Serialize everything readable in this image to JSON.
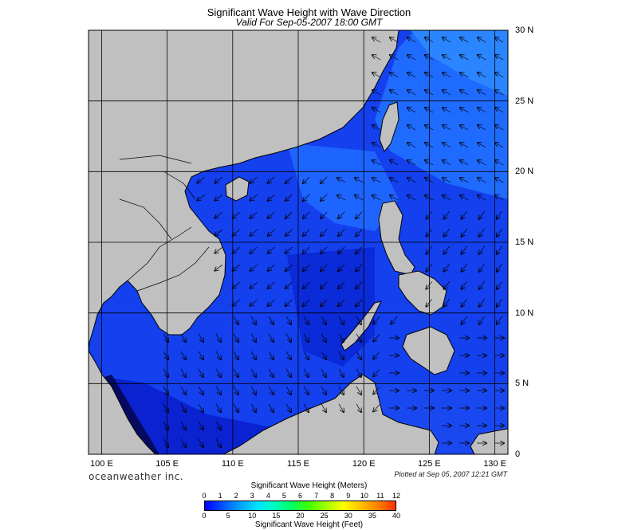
{
  "title": "Significant Wave Height with Wave Direction",
  "subtitle": "Valid For Sep-05-2007 18:00 GMT",
  "map": {
    "lon_range": [
      99,
      131
    ],
    "lat_range": [
      0,
      30
    ],
    "lat_labels": [
      "0",
      "5 N",
      "10 N",
      "15 N",
      "20 N",
      "25 N",
      "30 N"
    ],
    "lat_values": [
      0,
      5,
      10,
      15,
      20,
      25,
      30
    ],
    "lon_labels": [
      "100 E",
      "105 E",
      "110 E",
      "115 E",
      "120 E",
      "125 E",
      "130 E"
    ],
    "lon_values": [
      100,
      105,
      110,
      115,
      120,
      125,
      130
    ],
    "ocean_color": "#1e50ff",
    "land_color": "#c0c0c0"
  },
  "branding": "oceanweather inc.",
  "plotted": "Plotted at Sep 05, 2007 12:21 GMT",
  "scale": {
    "meters_title": "Significant Wave Height (Meters)",
    "feet_title": "Significant Wave Height (Feet)",
    "meters_ticks": [
      "0",
      "1",
      "2",
      "3",
      "4",
      "5",
      "6",
      "7",
      "8",
      "9",
      "10",
      "11",
      "12"
    ],
    "feet_ticks": [
      "0",
      "5",
      "10",
      "15",
      "20",
      "25",
      "30",
      "35",
      "40"
    ],
    "colors": [
      "#0000ff",
      "#0050ff",
      "#00a0ff",
      "#00e0ff",
      "#00ffc0",
      "#00ff60",
      "#40ff00",
      "#a0ff00",
      "#ffff00",
      "#ffc000",
      "#ff8000",
      "#ff3000"
    ]
  }
}
